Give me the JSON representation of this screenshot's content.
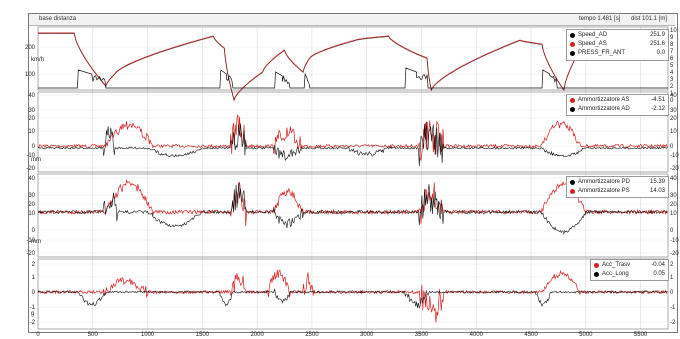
{
  "window": {
    "title": "base distanza",
    "time_readout": "tempo 1.481 [s]",
    "dist_readout": "dist 101.1 [m]"
  },
  "x_axis": {
    "ticks": [
      "0",
      "500",
      "1000",
      "1500",
      "2000",
      "2500",
      "3000",
      "3500",
      "4000",
      "4500",
      "5000",
      "5500"
    ],
    "max": 5750
  },
  "panels": [
    {
      "id": "speed",
      "unit": "km/h",
      "y_ticks": [
        "200",
        "100"
      ],
      "right_ticks": [
        "10",
        "9",
        "8",
        "7",
        "6",
        "5",
        "4",
        "3",
        "2",
        "1",
        "0"
      ],
      "ylim": [
        0,
        310
      ],
      "legend": [
        {
          "label": "Speed_AD",
          "value": "251.9",
          "color": "#000000"
        },
        {
          "label": "Speed_AS",
          "value": "251.6",
          "color": "#d62020"
        },
        {
          "label": "PRESS_FR_ANT",
          "value": "0.0",
          "color": "#000000"
        }
      ]
    },
    {
      "id": "shock_rear",
      "unit": "mm",
      "y_ticks": [
        "40",
        "30",
        "20",
        "10",
        "0",
        "-10",
        "-20"
      ],
      "right_ticks": [
        "40",
        "30",
        "20",
        "10",
        "0",
        "-10",
        "-20"
      ],
      "ylim": [
        -20,
        40
      ],
      "legend": [
        {
          "label": "Ammortizzatore AS",
          "value": "-4.51",
          "color": "#d62020"
        },
        {
          "label": "Ammortizzatore AD",
          "value": "-2.12",
          "color": "#000000"
        }
      ]
    },
    {
      "id": "shock_front",
      "unit": "mm",
      "y_ticks": [
        "40",
        "30",
        "20",
        "10",
        "0",
        "-10",
        "-20"
      ],
      "right_ticks": [
        "40",
        "30",
        "20",
        "10",
        "0",
        "-10",
        "-20"
      ],
      "ylim": [
        -20,
        40
      ],
      "legend": [
        {
          "label": "Ammortizzatore PD",
          "value": "15.39",
          "color": "#000000"
        },
        {
          "label": "Ammortizzatore PS",
          "value": "14.03",
          "color": "#d62020"
        }
      ]
    },
    {
      "id": "accel",
      "unit": "g",
      "y_ticks": [
        "2",
        "1",
        "0",
        "-1",
        "-2"
      ],
      "right_ticks": [
        "2",
        "1",
        "0",
        "-1",
        "-2"
      ],
      "ylim": [
        -2,
        2
      ],
      "legend": [
        {
          "label": "Acc_Trasv",
          "value": "-0.04",
          "color": "#d62020"
        },
        {
          "label": "Acc_Long",
          "value": "0.05",
          "color": "#000000"
        }
      ]
    }
  ]
}
